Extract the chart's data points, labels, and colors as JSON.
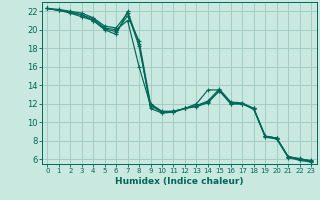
{
  "title": "",
  "xlabel": "Humidex (Indice chaleur)",
  "xlim": [
    -0.5,
    23.5
  ],
  "ylim": [
    5.5,
    23.0
  ],
  "background_color": "#c8e8e0",
  "grid_color": "#a0c8c0",
  "line_color": "#006858",
  "xticks": [
    0,
    1,
    2,
    3,
    4,
    5,
    6,
    7,
    8,
    9,
    10,
    11,
    12,
    13,
    14,
    15,
    16,
    17,
    18,
    19,
    20,
    21,
    22,
    23
  ],
  "yticks": [
    6,
    8,
    10,
    12,
    14,
    16,
    18,
    20,
    22
  ],
  "lines": [
    [
      22.3,
      22.1,
      21.8,
      21.4,
      21.0,
      20.0,
      19.5,
      22.0,
      18.5,
      11.5,
      11.0,
      11.1,
      11.5,
      12.0,
      13.5,
      13.5,
      12.0,
      12.0,
      11.5,
      8.5,
      8.3,
      6.3,
      6.0,
      5.9
    ],
    [
      22.3,
      22.1,
      21.9,
      21.6,
      21.2,
      20.2,
      20.0,
      21.0,
      16.0,
      11.8,
      11.1,
      11.2,
      11.5,
      11.8,
      12.2,
      13.4,
      12.1,
      12.0,
      11.5,
      8.5,
      8.3,
      6.3,
      6.1,
      5.8
    ],
    [
      22.3,
      22.1,
      21.9,
      21.6,
      21.0,
      20.1,
      19.8,
      21.5,
      18.8,
      12.0,
      11.2,
      11.2,
      11.5,
      11.8,
      12.3,
      13.6,
      12.2,
      12.1,
      11.5,
      8.5,
      8.3,
      6.3,
      6.0,
      5.8
    ],
    [
      22.3,
      22.2,
      22.0,
      21.8,
      21.3,
      20.4,
      20.2,
      21.8,
      18.2,
      11.9,
      11.1,
      11.1,
      11.5,
      11.7,
      12.1,
      13.4,
      12.0,
      12.0,
      11.4,
      8.4,
      8.2,
      6.2,
      5.9,
      5.7
    ]
  ]
}
